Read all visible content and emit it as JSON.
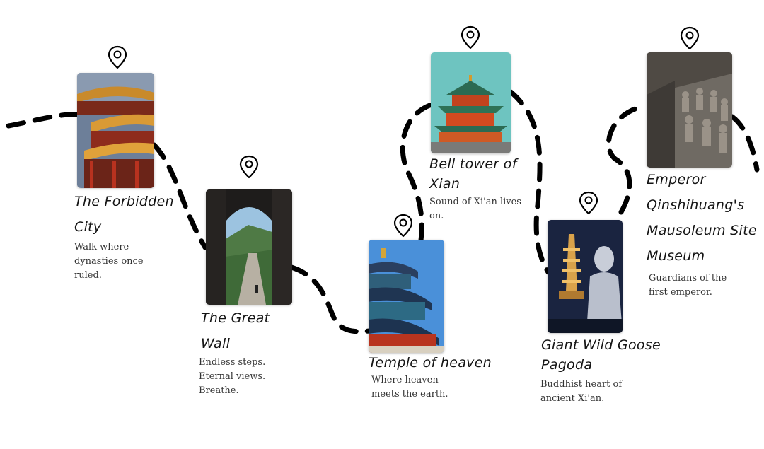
{
  "route": {
    "stroke_color": "#000000"
  },
  "stops": [
    {
      "id": "forbidden-city",
      "title": "The Forbidden City",
      "description": "Walk where dynasties once ruled.",
      "icon": "map-pin-icon"
    },
    {
      "id": "great-wall",
      "title": "The Great Wall",
      "description": "Endless steps. Eternal views. Breathe.",
      "icon": "map-pin-icon"
    },
    {
      "id": "temple-of-heaven",
      "title": "Temple of heaven",
      "description": "Where heaven meets the earth.",
      "icon": "map-pin-icon"
    },
    {
      "id": "bell-tower",
      "title": "Bell tower of Xian",
      "description": "Sound of Xi'an lives on.",
      "icon": "map-pin-icon"
    },
    {
      "id": "wild-goose-pagoda",
      "title": "Giant Wild Goose Pagoda",
      "description": "Buddhist heart of ancient Xi'an.",
      "icon": "map-pin-icon"
    },
    {
      "id": "terracotta",
      "title": "Emperor Qinshihuang's Mausoleum Site Museum",
      "description": "Guardians of the first emperor.",
      "icon": "map-pin-icon"
    }
  ]
}
